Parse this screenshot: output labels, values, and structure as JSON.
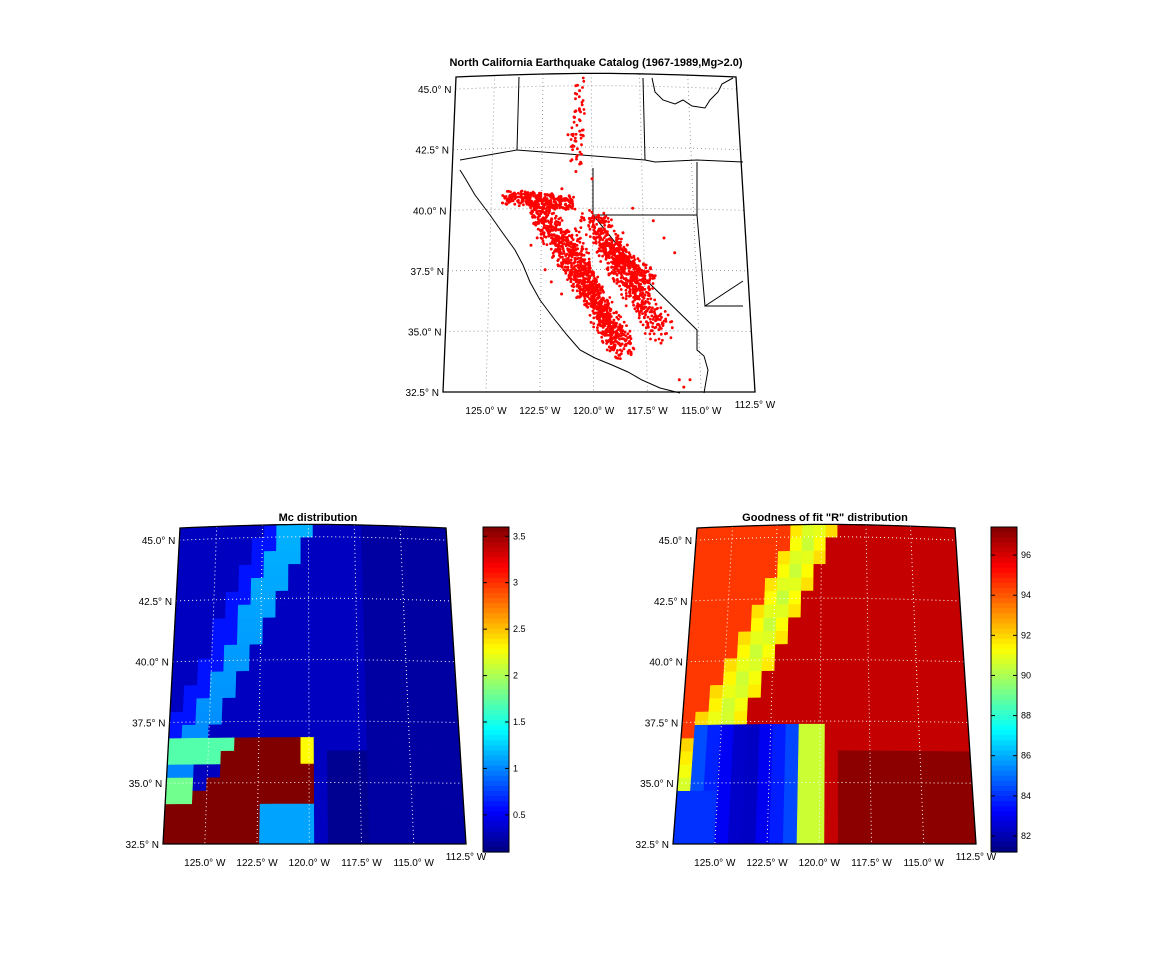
{
  "charts": [
    {
      "title": "North California Earthquake Catalog (1967-1989,Mg>2.0)",
      "type": "scatter",
      "lat_ticks": [
        "45.0° N",
        "42.5° N",
        "40.0° N",
        "37.5° N",
        "35.0° N",
        "32.5° N"
      ],
      "lon_ticks": [
        "125.0° W",
        "122.5° W",
        "120.0° W",
        "117.5° W",
        "115.0° W",
        "112.5° W"
      ],
      "color": "#ff0000"
    },
    {
      "title": "Mc distribution",
      "type": "heatmap",
      "lat_ticks": [
        "45.0° N",
        "42.5° N",
        "40.0° N",
        "37.5° N",
        "35.0° N",
        "32.5° N"
      ],
      "lon_ticks": [
        "125.0° W",
        "122.5° W",
        "120.0° W",
        "117.5° W",
        "115.0° W",
        "112.5° W"
      ],
      "colorbar_ticks": [
        "3.5",
        "3",
        "2.5",
        "2",
        "1.5",
        "1",
        "0.5"
      ],
      "colorbar_range": [
        0.1,
        3.6
      ]
    },
    {
      "title": "Goodness of fit \"R\" distribution",
      "type": "heatmap",
      "lat_ticks": [
        "45.0° N",
        "42.5° N",
        "40.0° N",
        "37.5° N",
        "35.0° N",
        "32.5° N"
      ],
      "lon_ticks": [
        "125.0° W",
        "122.5° W",
        "120.0° W",
        "117.5° W",
        "115.0° W",
        "112.5° W"
      ],
      "colorbar_ticks": [
        "96",
        "94",
        "92",
        "90",
        "88",
        "86",
        "84",
        "82"
      ],
      "colorbar_range": [
        81.2,
        97.4
      ]
    }
  ],
  "chart_data": [
    {
      "type": "scatter",
      "title": "North California Earthquake Catalog (1967-1989,Mg>2.0)",
      "xlabel": "",
      "ylabel": "",
      "xlim": [
        -127,
        -112.5
      ],
      "ylim": [
        32.5,
        45.5
      ],
      "x_ticks": [
        -125,
        -122.5,
        -120,
        -117.5,
        -115,
        -112.5
      ],
      "y_ticks": [
        32.5,
        35,
        37.5,
        40,
        42.5,
        45
      ],
      "grid": true,
      "series": [
        {
          "values": [
            [
              -124.2,
              40.4
            ],
            [
              -123.8,
              40.5
            ],
            [
              -123.5,
              40.6
            ],
            [
              -123.2,
              40.5
            ],
            [
              -123.0,
              40.3
            ],
            [
              -122.8,
              40.0
            ],
            [
              -122.6,
              39.7
            ],
            [
              -122.4,
              39.4
            ],
            [
              -122.2,
              39.1
            ],
            [
              -122.0,
              38.8
            ],
            [
              -121.8,
              38.5
            ],
            [
              -121.6,
              38.2
            ],
            [
              -121.4,
              37.9
            ],
            [
              -121.2,
              37.6
            ],
            [
              -121.0,
              37.3
            ],
            [
              -120.8,
              37.0
            ],
            [
              -120.6,
              36.7
            ],
            [
              -120.4,
              36.4
            ],
            [
              -120.2,
              36.1
            ],
            [
              -120.0,
              35.8
            ],
            [
              -119.8,
              35.5
            ],
            [
              -119.6,
              35.2
            ],
            [
              -119.4,
              34.9
            ],
            [
              -119.2,
              34.6
            ],
            [
              -119.0,
              34.3
            ],
            [
              -118.8,
              34.0
            ],
            [
              -118.5,
              39.0
            ],
            [
              -118.3,
              38.5
            ],
            [
              -118.0,
              38.0
            ],
            [
              -117.8,
              37.5
            ],
            [
              -117.5,
              37.0
            ],
            [
              -117.3,
              36.5
            ],
            [
              -119.5,
              39.5
            ],
            [
              -119.8,
              38.8
            ],
            [
              -120.5,
              39.6
            ],
            [
              -121.0,
              40.2
            ],
            [
              -122.0,
              40.6
            ],
            [
              -121.5,
              40.8
            ],
            [
              -120.8,
              41.5
            ],
            [
              -121.2,
              43.0
            ],
            [
              -120.8,
              45.0
            ],
            [
              -120.6,
              44.8
            ],
            [
              -120.0,
              41.2
            ],
            [
              -118.0,
              40.0
            ],
            [
              -116.0,
              33.0
            ],
            [
              -115.8,
              32.7
            ],
            [
              -115.5,
              33.0
            ],
            [
              -117.0,
              39.5
            ],
            [
              -116.5,
              38.8
            ],
            [
              -116.0,
              38.2
            ],
            [
              -119.0,
              37.8
            ],
            [
              -118.6,
              37.4
            ],
            [
              -117.9,
              36.0
            ],
            [
              -117.2,
              35.0
            ],
            [
              -116.8,
              34.5
            ],
            [
              -121.5,
              36.5
            ],
            [
              -122.0,
              37.0
            ],
            [
              -122.3,
              37.5
            ],
            [
              -123.0,
              38.5
            ],
            [
              -122.7,
              38.8
            ]
          ]
        }
      ]
    },
    {
      "type": "heatmap",
      "title": "Mc distribution",
      "xlim": [
        -127,
        -112.5
      ],
      "ylim": [
        32.5,
        45.5
      ],
      "colorbar": {
        "min": 0.1,
        "max": 3.6,
        "ticks": [
          0.5,
          1,
          1.5,
          2,
          2.5,
          3,
          3.5
        ]
      },
      "description_regions": [
        {
          "region": "background (north and east)",
          "value": 0.3
        },
        {
          "region": "diagonal ridge along fault zone",
          "value": 0.9
        },
        {
          "region": "southwest block",
          "value": 3.6
        },
        {
          "region": "southeast corner",
          "value": 0.15
        }
      ]
    },
    {
      "type": "heatmap",
      "title": "Goodness of fit \"R\" distribution",
      "xlim": [
        -127,
        -112.5
      ],
      "ylim": [
        32.5,
        45.5
      ],
      "colorbar": {
        "min": 81.2,
        "max": 97.4,
        "ticks": [
          82,
          84,
          86,
          88,
          90,
          92,
          94,
          96
        ]
      },
      "description_regions": [
        {
          "region": "northwest",
          "value": 94.5
        },
        {
          "region": "diagonal band",
          "value": 91.0
        },
        {
          "region": "east",
          "value": 96.2
        },
        {
          "region": "southwest lobe",
          "value": 82.5
        },
        {
          "region": "southeast corner",
          "value": 97.2
        }
      ]
    }
  ]
}
